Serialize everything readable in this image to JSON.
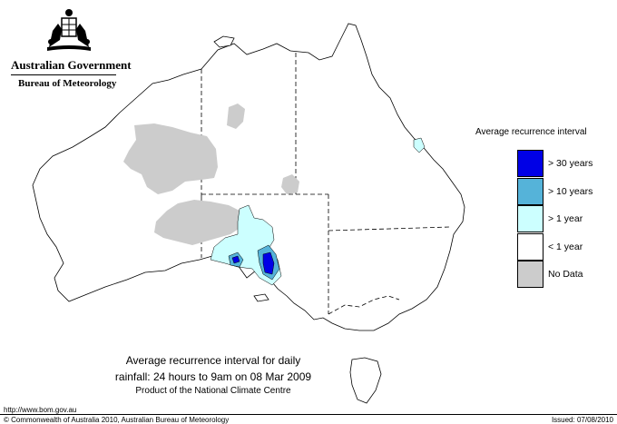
{
  "header": {
    "government": "Australian Government",
    "bureau": "Bureau of Meteorology"
  },
  "legend": {
    "title": "Average recurrence interval",
    "items": [
      {
        "label": "> 30 years",
        "color": "#0000e6"
      },
      {
        "label": "> 10 years",
        "color": "#55b3d9"
      },
      {
        "label": "> 1 year",
        "color": "#ccffff"
      },
      {
        "label": "< 1 year",
        "color": "#ffffff"
      },
      {
        "label": "No Data",
        "color": "#cccccc"
      }
    ]
  },
  "caption": {
    "line1": "Average recurrence interval for daily",
    "line2": "rainfall: 24 hours to 9am on 08 Mar 2009",
    "line3": "Product of the National Climate Centre"
  },
  "footer": {
    "url": "http://www.bom.gov.au",
    "copyright": "© Commonwealth of Australia 2010, Australian Bureau of Meteorology",
    "issued": "Issued: 07/08/2010"
  }
}
